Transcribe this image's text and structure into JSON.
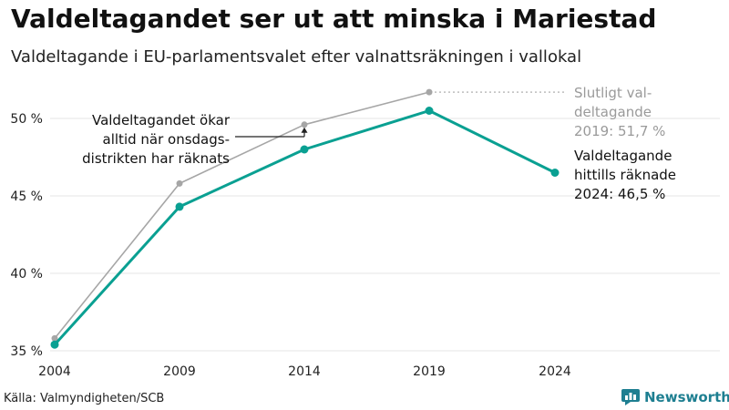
{
  "title": "Valdeltagandet ser ut att minska i Mariestad",
  "subtitle": "Valdeltagande i EU-parlamentsvalet efter valnattsräkningen i vallokal",
  "source": "Källa: Valmyndigheten/SCB",
  "brand": {
    "name": "Newsworthy",
    "icon": "newsworthy-logo-icon",
    "color": "#1e7f91"
  },
  "chart_data": {
    "type": "line",
    "x": [
      "2004",
      "2009",
      "2014",
      "2019",
      "2024"
    ],
    "ylim": [
      35,
      52
    ],
    "y_ticks": [
      35,
      40,
      45,
      50
    ],
    "y_tick_labels": [
      "35 %",
      "40 %",
      "45 %",
      "50 %"
    ],
    "grid": true,
    "series": [
      {
        "key": "final",
        "color": "#a6a6a6",
        "values": [
          35.8,
          45.8,
          49.6,
          51.7,
          null
        ]
      },
      {
        "key": "counted",
        "color": "#0aa092",
        "values": [
          35.4,
          44.3,
          48.0,
          50.5,
          46.5
        ]
      }
    ],
    "annotations": {
      "wednesday": [
        "Valdeltagandet ökar",
        "alltid när onsdags-",
        "distrikten har räknats"
      ],
      "final_2019": [
        "Slutligt val-",
        "deltagande",
        "2019: 51,7 %"
      ],
      "counted_2024": [
        "Valdeltagande",
        "hittills räknade",
        "2024: 46,5 %"
      ]
    }
  }
}
